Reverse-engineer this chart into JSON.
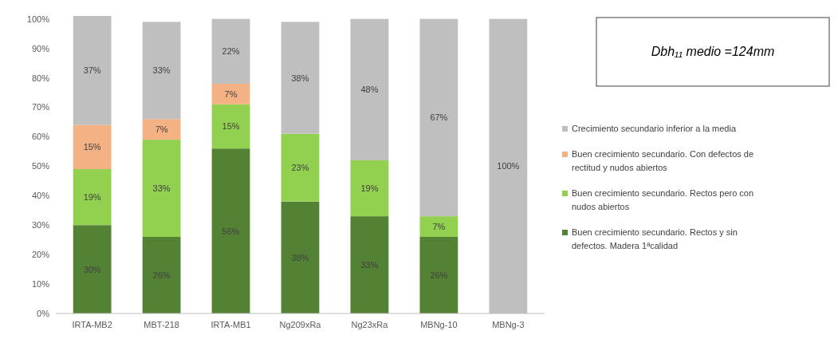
{
  "chart_data": {
    "type": "bar",
    "stacked": true,
    "categories": [
      "IRTA-MB2",
      "MBT-218",
      "IRTA-MB1",
      "Ng209xRa",
      "Ng23xRa",
      "MBNg-10",
      "MBNg-3"
    ],
    "series": [
      {
        "name": "Buen crecimiento secundario. Rectos y sin defectos. Madera 1ªcalidad",
        "color": "#548235",
        "values": [
          30,
          26,
          56,
          38,
          33,
          26,
          null
        ],
        "value_labels": [
          "30%",
          "26%",
          "56%",
          "38%",
          "33%",
          "26%",
          null
        ]
      },
      {
        "name": "Buen crecimiento secundario. Rectos pero con nudos abiertos",
        "color": "#92d050",
        "values": [
          19,
          33,
          15,
          23,
          19,
          7,
          null
        ],
        "value_labels": [
          "19%",
          "33%",
          "15%",
          "23%",
          "19%",
          "7%",
          null
        ]
      },
      {
        "name": "Buen crecimiento secundario. Con defectos de rectitud y nudos abiertos",
        "color": "#f4b183",
        "values": [
          15,
          7,
          7,
          null,
          null,
          null,
          null
        ],
        "value_labels": [
          "15%",
          "7%",
          "7%",
          null,
          null,
          null,
          null
        ]
      },
      {
        "name": "Crecimiento secundario inferior a la media",
        "color": "#bfbfbf",
        "values": [
          37,
          33,
          22,
          38,
          48,
          67,
          100
        ],
        "value_labels": [
          "37%",
          "33%",
          "22%",
          "38%",
          "48%",
          "67%",
          "100%"
        ]
      }
    ],
    "ylim": [
      0,
      101
    ],
    "yticks": [
      {
        "value": 0,
        "label": "0%"
      },
      {
        "value": 10,
        "label": "10%"
      },
      {
        "value": 20,
        "label": "20%"
      },
      {
        "value": 30,
        "label": "30%"
      },
      {
        "value": 40,
        "label": "40%"
      },
      {
        "value": 50,
        "label": "50%"
      },
      {
        "value": 60,
        "label": "60%"
      },
      {
        "value": 70,
        "label": "70%"
      },
      {
        "value": 80,
        "label": "80%"
      },
      {
        "value": 90,
        "label": "90%"
      },
      {
        "value": 100,
        "label": "100%"
      }
    ],
    "grid": false,
    "legend": "right",
    "annotations": [
      "Dbh₁₁ medio =124mm"
    ]
  }
}
